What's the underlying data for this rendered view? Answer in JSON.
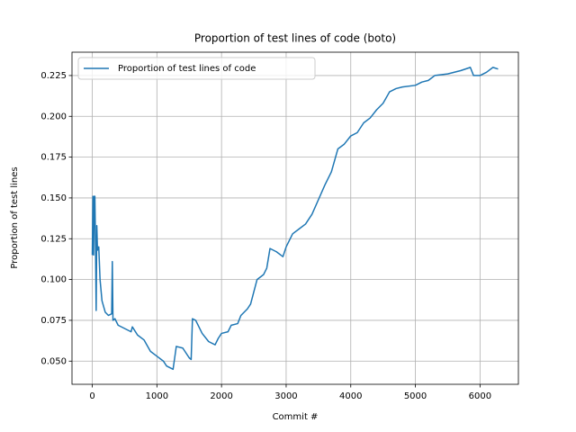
{
  "chart_data": {
    "type": "line",
    "title": "Proportion of test lines of code (boto)",
    "x_label": "Commit #",
    "y_label": "Proportion of test lines",
    "x": [
      0,
      10,
      20,
      30,
      40,
      50,
      60,
      70,
      80,
      100,
      120,
      150,
      200,
      250,
      300,
      310,
      320,
      350,
      400,
      500,
      600,
      620,
      700,
      800,
      900,
      1000,
      1100,
      1150,
      1250,
      1300,
      1400,
      1500,
      1530,
      1550,
      1600,
      1700,
      1800,
      1900,
      1950,
      2000,
      2100,
      2150,
      2250,
      2300,
      2400,
      2450,
      2550,
      2650,
      2700,
      2750,
      2850,
      2950,
      3000,
      3100,
      3200,
      3300,
      3400,
      3500,
      3600,
      3700,
      3800,
      3900,
      4000,
      4100,
      4200,
      4300,
      4400,
      4500,
      4600,
      4700,
      4800,
      5000,
      5100,
      5200,
      5300,
      5500,
      5700,
      5850,
      5900,
      6000,
      6100,
      6200,
      6280
    ],
    "series": [
      {
        "name": "Proportion of test lines of code",
        "color": "#1f77b4",
        "values": [
          0.115,
          0.151,
          0.115,
          0.151,
          0.151,
          0.12,
          0.081,
          0.133,
          0.118,
          0.12,
          0.1,
          0.087,
          0.08,
          0.078,
          0.079,
          0.111,
          0.075,
          0.076,
          0.072,
          0.07,
          0.068,
          0.071,
          0.066,
          0.063,
          0.056,
          0.053,
          0.05,
          0.047,
          0.045,
          0.059,
          0.058,
          0.052,
          0.051,
          0.076,
          0.075,
          0.067,
          0.062,
          0.06,
          0.064,
          0.067,
          0.068,
          0.072,
          0.073,
          0.078,
          0.082,
          0.085,
          0.1,
          0.103,
          0.107,
          0.119,
          0.117,
          0.114,
          0.12,
          0.128,
          0.131,
          0.134,
          0.14,
          0.149,
          0.158,
          0.166,
          0.18,
          0.183,
          0.188,
          0.19,
          0.196,
          0.199,
          0.204,
          0.208,
          0.215,
          0.217,
          0.218,
          0.219,
          0.221,
          0.222,
          0.225,
          0.226,
          0.228,
          0.23,
          0.225,
          0.225,
          0.227,
          0.23,
          0.229
        ]
      }
    ],
    "xlim": [
      -314,
      6594
    ],
    "xticks": [
      0,
      1000,
      2000,
      3000,
      4000,
      5000,
      6000
    ],
    "ylim": [
      0.0358,
      0.2393
    ],
    "yticks": [
      {
        "value": 0.05,
        "label": "0.050"
      },
      0.075,
      {
        "value": 0.1,
        "label": "0.100"
      },
      0.125,
      {
        "value": 0.15,
        "label": "0.150"
      },
      0.175,
      {
        "value": 0.2,
        "label": "0.200"
      },
      0.225
    ],
    "grid": true,
    "legend": "upper left"
  }
}
